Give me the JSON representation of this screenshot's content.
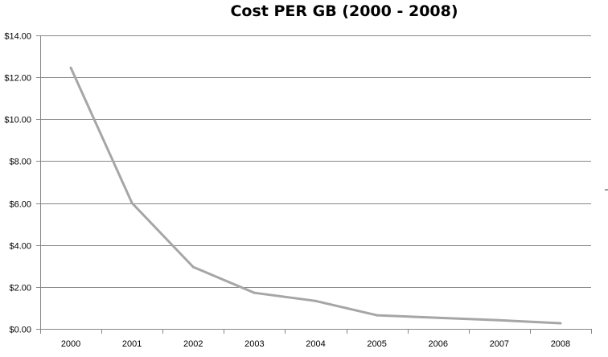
{
  "chart_data": {
    "type": "line",
    "title": "Cost PER GB (2000 - 2008)",
    "xlabel": "",
    "ylabel": "",
    "categories": [
      "2000",
      "2001",
      "2002",
      "2003",
      "2004",
      "2005",
      "2006",
      "2007",
      "2008"
    ],
    "series": [
      {
        "values": [
          12.45,
          6.0,
          2.95,
          1.72,
          1.33,
          0.65,
          0.53,
          0.41,
          0.27
        ],
        "color": "#a6a6a6"
      }
    ],
    "ylim": [
      0,
      14
    ],
    "yticks": [
      "$0.00",
      "$2.00",
      "$4.00",
      "$6.00",
      "$8.00",
      "$10.00",
      "$12.00",
      "$14.00"
    ],
    "grid": true,
    "legend": "right"
  },
  "colors": {
    "gridline": "#878787",
    "axis": "#878787",
    "series": "#a6a6a6"
  }
}
